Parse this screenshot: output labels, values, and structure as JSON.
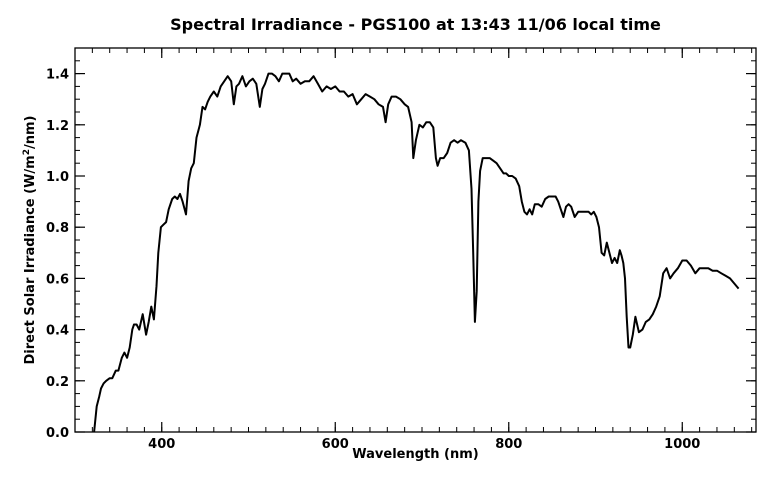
{
  "chart_data": {
    "type": "line",
    "title": "Spectral Irradiance - PGS100 at 13:43  11/06 local time",
    "xlabel": "Wavelength (nm)",
    "ylabel": {
      "prefix": "Direct Solar Irradiance (W/m",
      "superscript": "2",
      "suffix": "/nm)"
    },
    "xlim": [
      300,
      1085
    ],
    "ylim": [
      0.0,
      1.5
    ],
    "xticks": [
      400,
      600,
      800,
      1000
    ],
    "xtick_labels": [
      "400",
      "600",
      "800",
      "1000"
    ],
    "yticks": [
      0.0,
      0.2,
      0.4,
      0.6,
      0.8,
      1.0,
      1.2,
      1.4
    ],
    "ytick_labels": [
      "0.0",
      "0.2",
      "0.4",
      "0.6",
      "0.8",
      "1.0",
      "1.2",
      "1.4"
    ],
    "x_minor_step": 20,
    "y_minor_step": 0.05,
    "grid": false,
    "line_color": "#000000",
    "series": [
      {
        "x": [
          322,
          325,
          328,
          330,
          333,
          336,
          340,
          343,
          347,
          350,
          354,
          357,
          360,
          363,
          366,
          368,
          371,
          374,
          378,
          382,
          385,
          388,
          391,
          394,
          396,
          399,
          402,
          405,
          408,
          412,
          415,
          418,
          421,
          424,
          428,
          431,
          434,
          437,
          440,
          444,
          447,
          450,
          453,
          456,
          460,
          464,
          468,
          472,
          476,
          480,
          483,
          486,
          489,
          493,
          497,
          501,
          505,
          509,
          513,
          516,
          519,
          523,
          527,
          531,
          535,
          539,
          543,
          547,
          551,
          555,
          560,
          565,
          570,
          575,
          580,
          585,
          590,
          595,
          600,
          605,
          610,
          615,
          620,
          625,
          630,
          635,
          640,
          645,
          650,
          655,
          658,
          661,
          665,
          670,
          675,
          680,
          684,
          688,
          690,
          693,
          697,
          701,
          705,
          709,
          713,
          716,
          718,
          721,
          725,
          729,
          733,
          737,
          741,
          745,
          750,
          754,
          757,
          759,
          761,
          763,
          765,
          767,
          770,
          774,
          778,
          782,
          786,
          790,
          794,
          797,
          800,
          804,
          808,
          812,
          815,
          818,
          821,
          824,
          827,
          830,
          834,
          838,
          842,
          846,
          850,
          854,
          857,
          860,
          863,
          866,
          869,
          872,
          876,
          880,
          884,
          888,
          892,
          895,
          898,
          901,
          904,
          907,
          910,
          913,
          916,
          919,
          922,
          925,
          928,
          930,
          932,
          934,
          936,
          938,
          940,
          943,
          946,
          950,
          954,
          958,
          962,
          966,
          970,
          974,
          978,
          982,
          986,
          990,
          995,
          1000,
          1005,
          1010,
          1015,
          1020,
          1025,
          1030,
          1035,
          1040,
          1045,
          1050,
          1055,
          1060,
          1065
        ],
        "y": [
          0.0,
          0.1,
          0.14,
          0.17,
          0.19,
          0.2,
          0.21,
          0.21,
          0.24,
          0.24,
          0.29,
          0.31,
          0.29,
          0.33,
          0.4,
          0.42,
          0.42,
          0.4,
          0.46,
          0.38,
          0.43,
          0.49,
          0.44,
          0.57,
          0.7,
          0.8,
          0.81,
          0.82,
          0.87,
          0.91,
          0.92,
          0.91,
          0.93,
          0.9,
          0.85,
          0.98,
          1.03,
          1.05,
          1.15,
          1.2,
          1.27,
          1.26,
          1.29,
          1.31,
          1.33,
          1.31,
          1.35,
          1.37,
          1.39,
          1.37,
          1.28,
          1.35,
          1.36,
          1.39,
          1.35,
          1.37,
          1.38,
          1.36,
          1.27,
          1.34,
          1.36,
          1.4,
          1.4,
          1.39,
          1.37,
          1.4,
          1.4,
          1.4,
          1.37,
          1.38,
          1.36,
          1.37,
          1.37,
          1.39,
          1.36,
          1.33,
          1.35,
          1.34,
          1.35,
          1.33,
          1.33,
          1.31,
          1.32,
          1.28,
          1.3,
          1.32,
          1.31,
          1.3,
          1.28,
          1.27,
          1.21,
          1.28,
          1.31,
          1.31,
          1.3,
          1.28,
          1.27,
          1.21,
          1.07,
          1.14,
          1.2,
          1.19,
          1.21,
          1.21,
          1.19,
          1.07,
          1.04,
          1.07,
          1.07,
          1.09,
          1.13,
          1.14,
          1.13,
          1.14,
          1.13,
          1.1,
          0.95,
          0.7,
          0.43,
          0.55,
          0.9,
          1.02,
          1.07,
          1.07,
          1.07,
          1.06,
          1.05,
          1.03,
          1.01,
          1.01,
          1.0,
          1.0,
          0.99,
          0.96,
          0.9,
          0.86,
          0.85,
          0.87,
          0.85,
          0.89,
          0.89,
          0.88,
          0.91,
          0.92,
          0.92,
          0.92,
          0.9,
          0.87,
          0.84,
          0.88,
          0.89,
          0.88,
          0.84,
          0.86,
          0.86,
          0.86,
          0.86,
          0.85,
          0.86,
          0.84,
          0.8,
          0.7,
          0.69,
          0.74,
          0.7,
          0.66,
          0.68,
          0.66,
          0.71,
          0.69,
          0.66,
          0.6,
          0.45,
          0.33,
          0.33,
          0.38,
          0.45,
          0.39,
          0.4,
          0.43,
          0.44,
          0.46,
          0.49,
          0.53,
          0.62,
          0.64,
          0.6,
          0.62,
          0.64,
          0.67,
          0.67,
          0.65,
          0.62,
          0.64,
          0.64,
          0.64,
          0.63,
          0.63,
          0.62,
          0.61,
          0.6,
          0.58,
          0.56
        ]
      }
    ]
  }
}
